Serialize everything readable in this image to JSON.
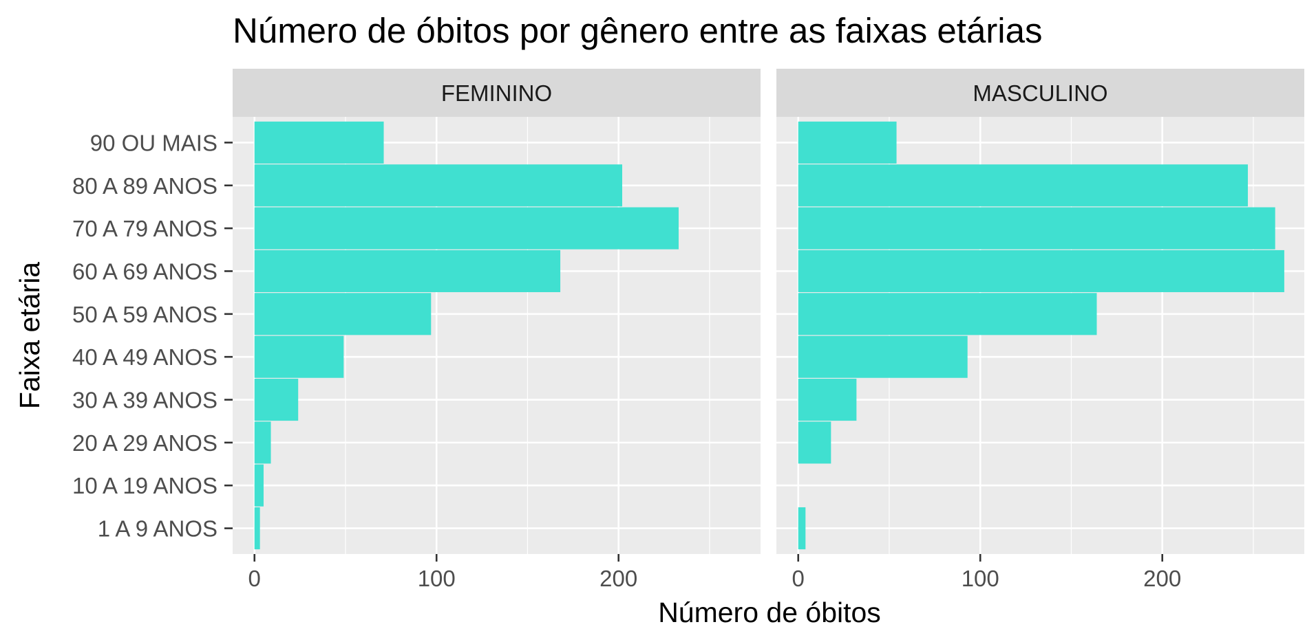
{
  "chart_data": {
    "type": "bar",
    "orientation": "horizontal",
    "title": "Número de óbitos por gênero entre as faixas etárias",
    "xlabel": "Número de óbitos",
    "ylabel": "Faixa etária",
    "categories": [
      "1 A 9 ANOS",
      "10 A 19 ANOS",
      "20 A 29 ANOS",
      "30 A 39 ANOS",
      "40 A 49 ANOS",
      "50 A 59 ANOS",
      "60 A 69 ANOS",
      "70 A 79 ANOS",
      "80 A 89 ANOS",
      "90 OU MAIS"
    ],
    "xticks": [
      0,
      100,
      200
    ],
    "xlim": [
      -12,
      278
    ],
    "grid": true,
    "bar_color": "#40E0D0",
    "panel_background": "#EBEBEB",
    "strip_background": "#D9D9D9",
    "grid_color": "#FFFFFF",
    "panels": [
      {
        "strip_label": "FEMININO",
        "values": [
          3,
          5,
          9,
          24,
          49,
          97,
          168,
          233,
          202,
          71
        ]
      },
      {
        "strip_label": "MASCULINO",
        "values": [
          4,
          0,
          18,
          32,
          93,
          164,
          267,
          262,
          247,
          54
        ]
      }
    ]
  }
}
